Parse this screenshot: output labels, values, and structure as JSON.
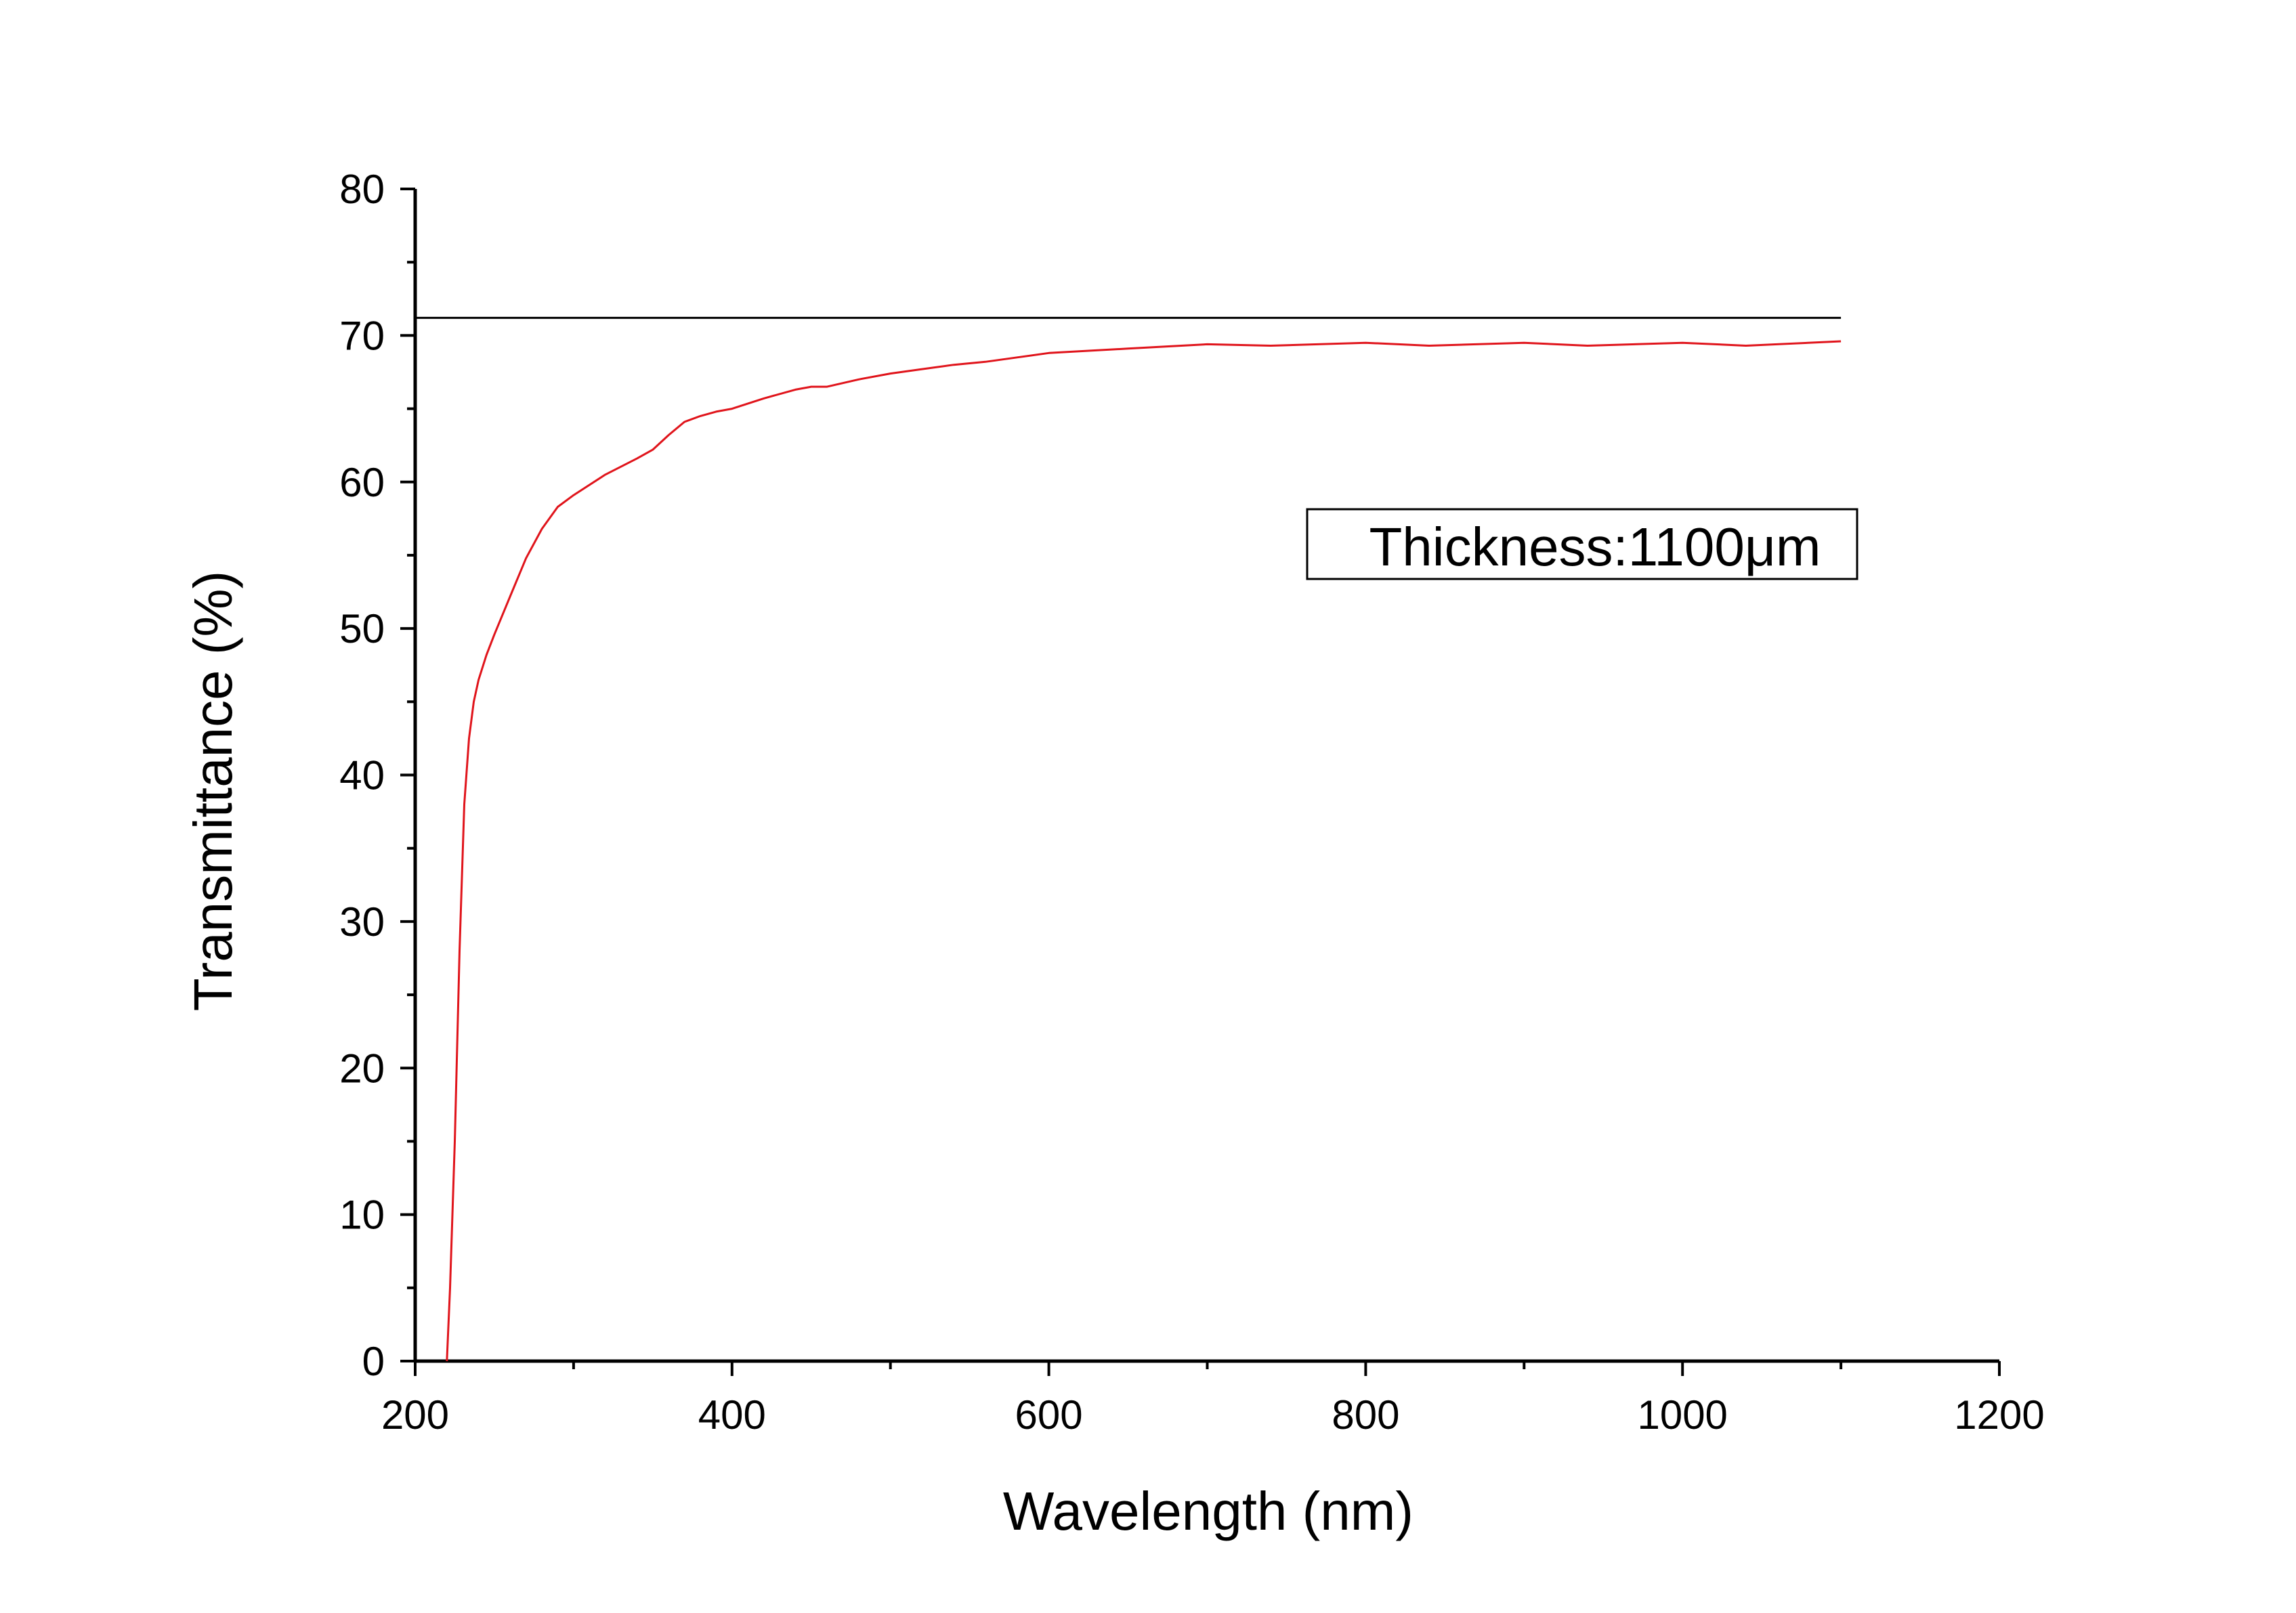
{
  "chart_data": {
    "type": "line",
    "title": "",
    "xlabel": "Wavelength (nm)",
    "ylabel": "Transmittance (%)",
    "xlim": [
      200,
      1200
    ],
    "ylim": [
      0,
      80
    ],
    "x_ticks": [
      200,
      400,
      600,
      800,
      1000,
      1200
    ],
    "y_ticks": [
      0,
      10,
      20,
      30,
      40,
      50,
      60,
      70,
      80
    ],
    "x_minor_step": 100,
    "y_minor_step": 5,
    "grid": false,
    "annotation": "Thickness:1100μm",
    "reference_line": {
      "y": 71.2,
      "x_start": 200,
      "x_end": 1100,
      "color": "#000000"
    },
    "series": [
      {
        "color": "#e0141b",
        "x": [
          220,
          222,
          225,
          228,
          231,
          234,
          237,
          240,
          245,
          250,
          260,
          270,
          280,
          290,
          300,
          320,
          340,
          350,
          360,
          370,
          380,
          390,
          400,
          420,
          440,
          450,
          460,
          480,
          500,
          520,
          540,
          560,
          580,
          600,
          650,
          700,
          740,
          800,
          840,
          900,
          940,
          1000,
          1040,
          1100
        ],
        "y": [
          0,
          5,
          15,
          28,
          38,
          42.5,
          45,
          46.5,
          48.2,
          49.6,
          52.2,
          54.8,
          56.8,
          58.3,
          59.1,
          60.5,
          61.6,
          62.2,
          63.2,
          64.1,
          64.5,
          64.8,
          65.0,
          65.7,
          66.3,
          66.5,
          66.5,
          67.0,
          67.4,
          67.7,
          68.0,
          68.2,
          68.5,
          68.8,
          69.1,
          69.4,
          69.3,
          69.5,
          69.3,
          69.5,
          69.3,
          69.5,
          69.3,
          69.6
        ]
      }
    ]
  }
}
